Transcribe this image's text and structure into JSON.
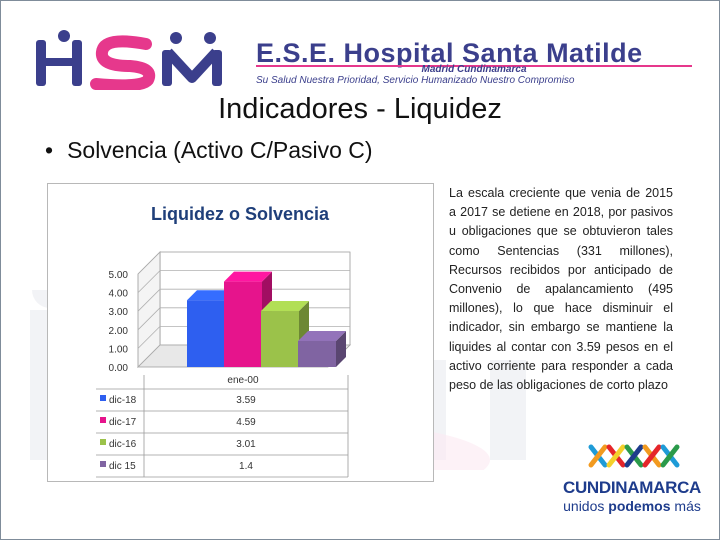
{
  "header": {
    "logo_text": "HSM",
    "hospital_name": "E.S.E. Hospital Santa Matilde",
    "location": "Madrid Cundinamarca",
    "motto": "Su Salud Nuestra Prioridad, Servicio Humanizado Nuestro Compromiso"
  },
  "slide": {
    "title": "Indicadores - Liquidez",
    "bullet_mark": "•",
    "bullet": "Solvencia (Activo C/Pasivo C)",
    "description": "La escala creciente que venia de 2015 a 2017 se detiene en 2018, por pasivos u obligaciones que se obtuvieron tales como Sentencias (331 millones), Recursos recibidos por anticipado de Convenio de apalancamiento (495 millones), lo que hace disminuir el indicador, sin embargo se mantiene la liquides al contar con 3.59 pesos en el activo corriente para responder a cada peso de las obligaciones de corto plazo"
  },
  "footer_logo": {
    "name": "CUNDINAMARCA",
    "slogan_a": "unidos ",
    "slogan_b": "podemos",
    "slogan_c": " más"
  },
  "chart_data": {
    "type": "bar",
    "title": "Liquidez o Solvencia",
    "categories": [
      "ene-00"
    ],
    "yticks": [
      "0.00",
      "1.00",
      "2.00",
      "3.00",
      "4.00",
      "5.00"
    ],
    "ylim": [
      0,
      5
    ],
    "series": [
      {
        "name": "dic-18",
        "label": "3.59",
        "values": [
          3.59
        ],
        "color": "#2e5ff0"
      },
      {
        "name": "dic-17",
        "label": "4.59",
        "values": [
          4.59
        ],
        "color": "#e6148c"
      },
      {
        "name": "dic-16",
        "label": "3.01",
        "values": [
          3.01
        ],
        "color": "#9bc24a"
      },
      {
        "name": "dic 15",
        "label": "1.4",
        "values": [
          1.4
        ],
        "color": "#8064a2"
      }
    ],
    "grid": true,
    "legend": "data-table"
  }
}
